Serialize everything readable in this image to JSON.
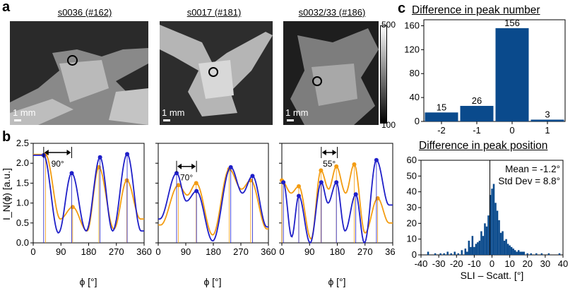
{
  "panel_letters": {
    "a": "a",
    "b": "b",
    "c": "c"
  },
  "images": [
    {
      "title": "s0036 (#162)",
      "scale": "1 mm"
    },
    {
      "title": "s0017 (#181)",
      "scale": "1 mm"
    },
    {
      "title": "s0032/33 (#186)",
      "scale": "1 mm"
    }
  ],
  "colorbar": {
    "max": "500",
    "min": "100"
  },
  "angle_labels": [
    "90°",
    "70°",
    "55°"
  ],
  "colors": {
    "sli": "#1f1fc8",
    "scatt": "#f39c12",
    "bar": "#0a4a8c"
  },
  "chart_data": [
    {
      "type": "line",
      "panel": "b",
      "ylabel": "I_N(ϕ) [a.u.]",
      "xlabel": "ϕ [°]",
      "xlim": [
        0,
        360
      ],
      "ylim": [
        0,
        2.5
      ],
      "xticks": [
        "0",
        "90",
        "180",
        "270",
        "360"
      ],
      "yticks": [
        "0.0",
        "0.5",
        "1.0",
        "1.5",
        "2.0",
        "2.5"
      ],
      "subplots": [
        {
          "blue_peaks": [
            [
              34,
              2.2
            ],
            [
              125,
              1.75
            ],
            [
              217,
              2.15
            ],
            [
              305,
              2.23
            ]
          ],
          "orange_peaks": [
            [
              40,
              2.22
            ],
            [
              128,
              0.9
            ],
            [
              213,
              1.9
            ],
            [
              304,
              1.57
            ]
          ],
          "blue_valleys": [
            [
              82,
              0.25
            ],
            [
              172,
              0.3
            ],
            [
              258,
              0.3
            ],
            [
              350,
              0.3
            ]
          ],
          "orange_valleys": [
            [
              88,
              0.6
            ],
            [
              175,
              0.3
            ],
            [
              262,
              0.35
            ],
            [
              348,
              0.6
            ]
          ]
        },
        {
          "blue_peaks": [
            [
              60,
              1.75
            ],
            [
              125,
              1.3
            ],
            [
              237,
              1.9
            ],
            [
              308,
              1.68
            ]
          ],
          "orange_peaks": [
            [
              66,
              1.45
            ],
            [
              124,
              1.5
            ],
            [
              232,
              1.85
            ],
            [
              302,
              1.57
            ]
          ],
          "blue_valleys": [
            [
              5,
              0.6
            ],
            [
              92,
              1.05
            ],
            [
              178,
              0.05
            ],
            [
              275,
              1.25
            ],
            [
              355,
              0.4
            ]
          ],
          "orange_valleys": [
            [
              8,
              0.45
            ],
            [
              95,
              1.2
            ],
            [
              178,
              0.2
            ],
            [
              272,
              1.35
            ],
            [
              355,
              0.35
            ]
          ]
        },
        {
          "blue_peaks": [
            [
              5,
              1.52
            ],
            [
              55,
              1.18
            ],
            [
              128,
              1.52
            ],
            [
              177,
              1.52
            ],
            [
              240,
              1.22
            ],
            [
              307,
              2.08
            ]
          ],
          "orange_peaks": [
            [
              0,
              1.57
            ],
            [
              55,
              1.42
            ],
            [
              127,
              1.82
            ],
            [
              177,
              1.92
            ],
            [
              235,
              1.97
            ],
            [
              311,
              1.12
            ]
          ],
          "blue_valleys": [
            [
              32,
              0.15
            ],
            [
              92,
              0.0
            ],
            [
              150,
              1.0
            ],
            [
              205,
              0.3
            ],
            [
              268,
              0.0
            ],
            [
              348,
              0.95
            ]
          ],
          "orange_valleys": [
            [
              30,
              1.25
            ],
            [
              95,
              0.1
            ],
            [
              152,
              1.35
            ],
            [
              207,
              1.25
            ],
            [
              270,
              0.25
            ],
            [
              348,
              0.5
            ]
          ]
        }
      ]
    },
    {
      "type": "bar",
      "panel": "c-top",
      "title": "Difference in peak number",
      "categories": [
        "-2",
        "-1",
        "0",
        "1"
      ],
      "values": [
        15,
        26,
        156,
        3
      ],
      "ylim": [
        0,
        170
      ],
      "yticks": [
        "0",
        "40",
        "80",
        "120",
        "160"
      ]
    },
    {
      "type": "bar",
      "panel": "c-bottom",
      "title": "Difference in peak position",
      "xlabel": "SLI – Scatt. [°]",
      "xlim": [
        -40,
        40
      ],
      "ylim": [
        0,
        60
      ],
      "xticks": [
        "-40",
        "-30",
        "-20",
        "-10",
        "0",
        "10",
        "20",
        "30",
        "40"
      ],
      "yticks": [
        "0",
        "10",
        "20",
        "30",
        "40",
        "50",
        "60"
      ],
      "annotation_mean": "Mean = -1.2°",
      "annotation_std": "Std Dev = 8.8°",
      "bin_centers": [
        -36,
        -32,
        -29,
        -27,
        -25,
        -23,
        -21,
        -19,
        -17,
        -15,
        -14,
        -13,
        -12,
        -11,
        -10,
        -9,
        -8,
        -7,
        -6,
        -5,
        -4,
        -3,
        -2,
        -1,
        0,
        1,
        2,
        3,
        4,
        5,
        6,
        7,
        8,
        9,
        10,
        11,
        12,
        13,
        14,
        15,
        16,
        17,
        18,
        20,
        22,
        25,
        28,
        32,
        38
      ],
      "counts": [
        2,
        1,
        1,
        1,
        2,
        1,
        2,
        1,
        3,
        4,
        2,
        9,
        5,
        12,
        5,
        7,
        8,
        9,
        15,
        12,
        20,
        18,
        25,
        38,
        42,
        45,
        33,
        28,
        22,
        14,
        15,
        9,
        10,
        7,
        6,
        5,
        4,
        3,
        2,
        3,
        2,
        2,
        2,
        1,
        1,
        1,
        1,
        1,
        1
      ]
    }
  ]
}
